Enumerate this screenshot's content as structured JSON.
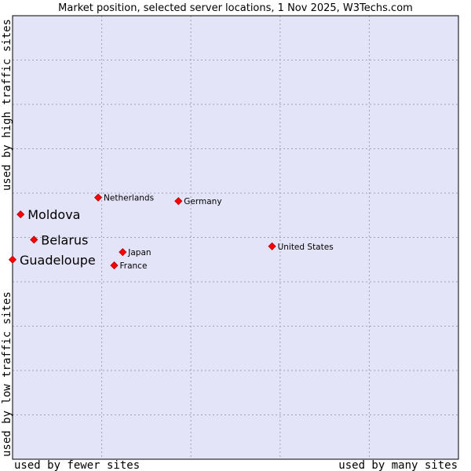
{
  "chart_data": {
    "type": "scatter",
    "title": "Market position, selected server locations, 1 Nov 2025, W3Techs.com",
    "xlabel_left": "used by fewer sites",
    "xlabel_right": "used by many sites",
    "ylabel_bottom": "used by low traffic sites",
    "ylabel_top": "used by high traffic sites",
    "xlim": [
      0,
      100
    ],
    "ylim": [
      0,
      100
    ],
    "grid": true,
    "colors": {
      "plot_background": "#e4e4f8",
      "grid": "#a0a0b8",
      "marker": "#ff0000",
      "marker_edge": "#b00000",
      "text": "#000000"
    },
    "points": [
      {
        "name": "Netherlands",
        "x": 19.2,
        "y": 59.0,
        "emphasis": false
      },
      {
        "name": "Germany",
        "x": 37.2,
        "y": 58.2,
        "emphasis": false
      },
      {
        "name": "Moldova",
        "x": 1.8,
        "y": 55.2,
        "emphasis": true
      },
      {
        "name": "Belarus",
        "x": 4.8,
        "y": 49.5,
        "emphasis": true
      },
      {
        "name": "United States",
        "x": 58.2,
        "y": 48.0,
        "emphasis": false
      },
      {
        "name": "Japan",
        "x": 24.7,
        "y": 46.7,
        "emphasis": false
      },
      {
        "name": "Guadeloupe",
        "x": 0.0,
        "y": 45.0,
        "emphasis": true
      },
      {
        "name": "France",
        "x": 22.8,
        "y": 43.7,
        "emphasis": false
      }
    ]
  }
}
